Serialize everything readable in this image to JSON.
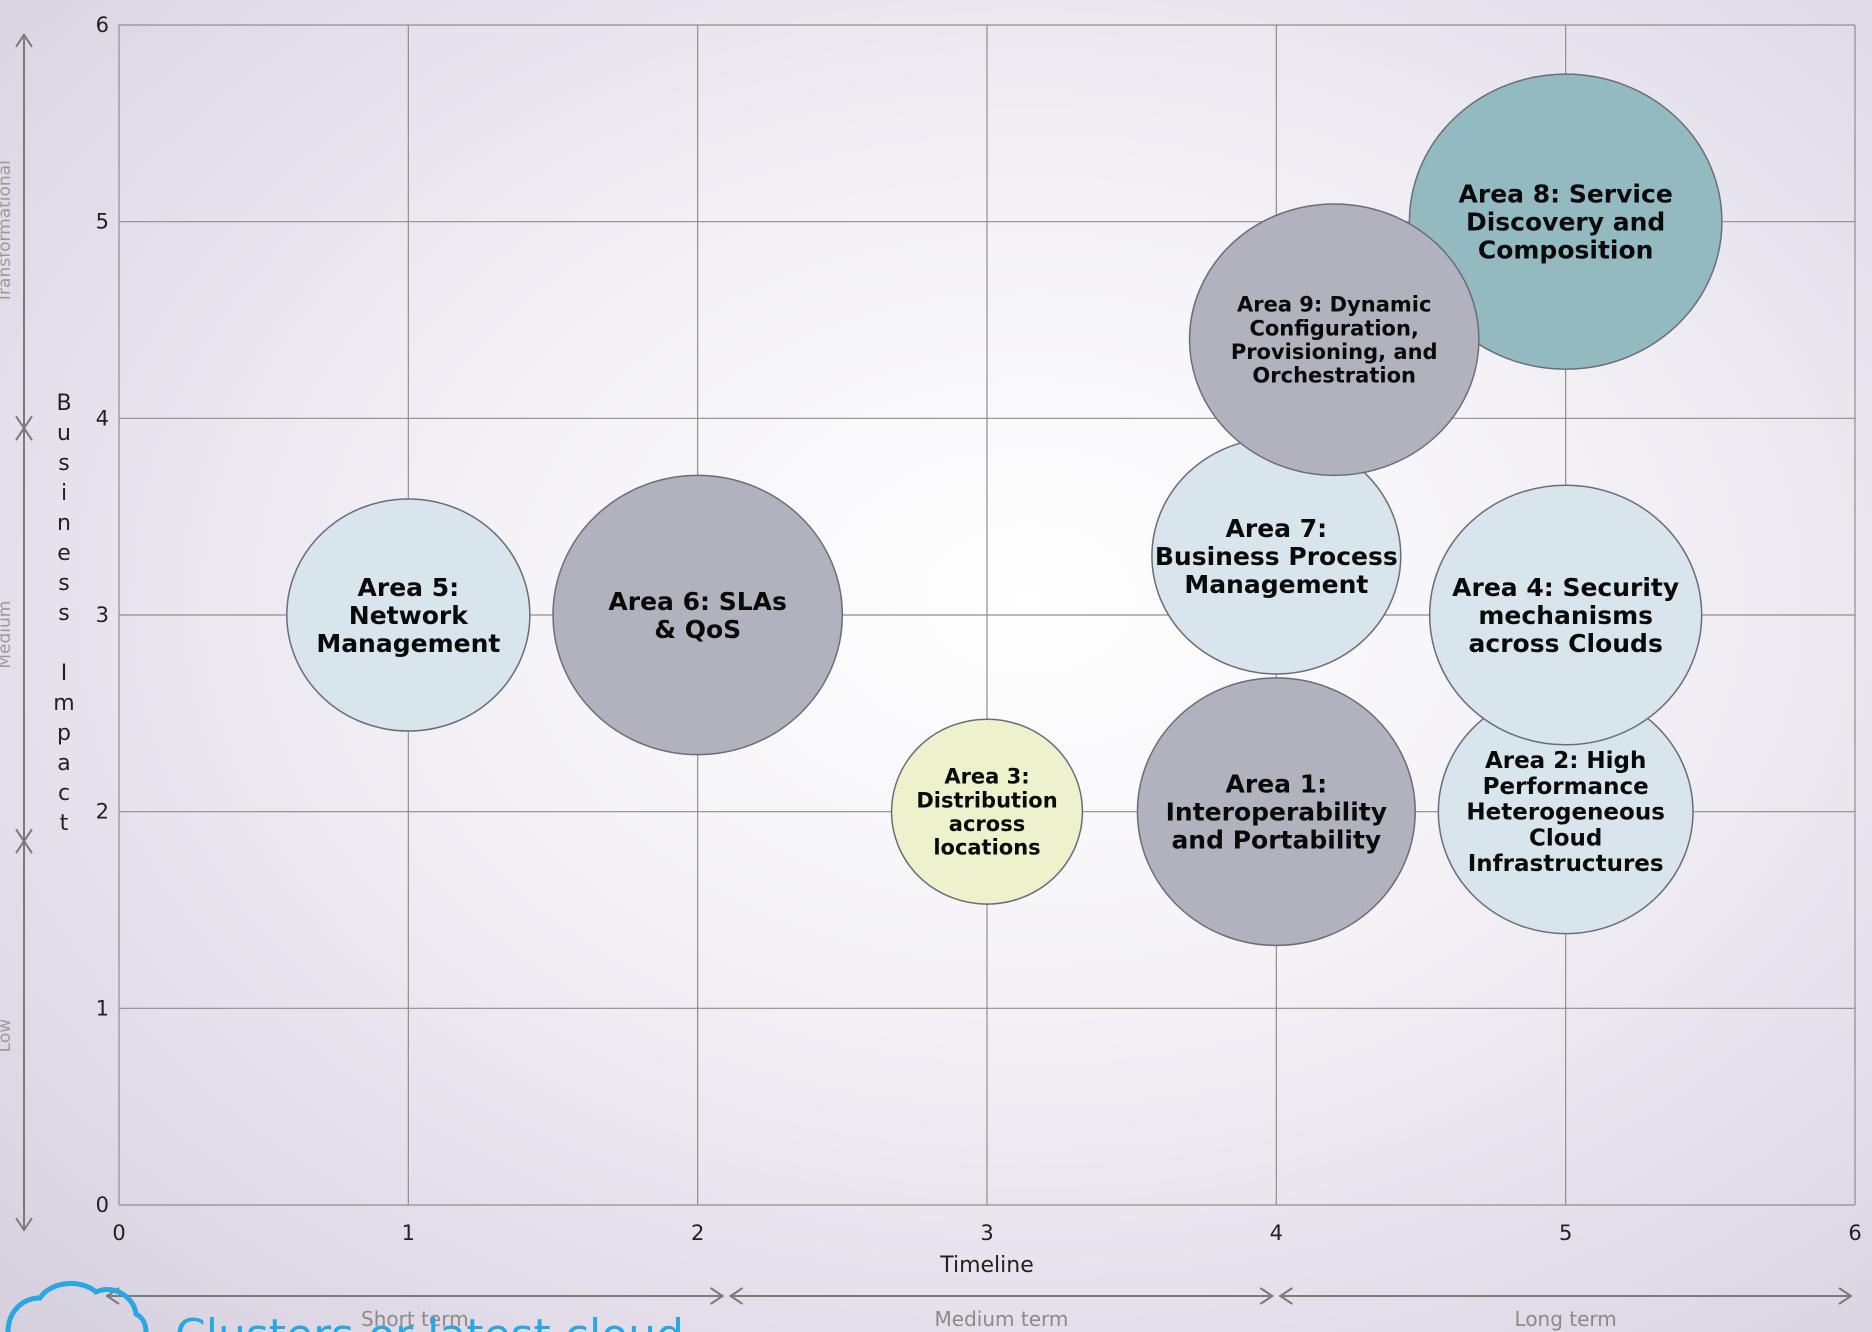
{
  "chart_data": {
    "type": "bubble",
    "xlabel": "Timeline",
    "ylabel": "Business Impact",
    "xlim": [
      0,
      6
    ],
    "ylim": [
      0,
      6
    ],
    "x_ticks": [
      "0",
      "1",
      "2",
      "3",
      "4",
      "5",
      "6"
    ],
    "y_ticks": [
      "0",
      "1",
      "2",
      "3",
      "4",
      "5",
      "6"
    ],
    "grid": true,
    "x_bands": [
      {
        "label": "Short term",
        "from": 0,
        "to": 2.1
      },
      {
        "label": "Medium term",
        "from": 2.1,
        "to": 4
      },
      {
        "label": "Long term",
        "from": 4,
        "to": 6
      }
    ],
    "y_bands": [
      {
        "label": "Low",
        "from": 0,
        "to": 1.85
      },
      {
        "label": "Medium",
        "from": 1.85,
        "to": 3.95
      },
      {
        "label": "Transformational",
        "from": 3.95,
        "to": 5.95
      }
    ],
    "bubbles": [
      {
        "label": "Area 5: Network Management",
        "lines": [
          "Area 5:",
          "Network",
          "Management"
        ],
        "x": 1.0,
        "y": 3.0,
        "rx": 0.42,
        "ry": 0.59,
        "color": "#d9e5ed"
      },
      {
        "label": "Area 6: SLAs & QoS",
        "lines": [
          "Area  6:  SLAs",
          "& QoS"
        ],
        "x": 2.0,
        "y": 3.0,
        "rx": 0.5,
        "ry": 0.71,
        "color": "#b2b2be"
      },
      {
        "label": "Area 3: Distribution across locations",
        "lines": [
          "Area 3:",
          "Distribution",
          "across",
          "locations"
        ],
        "x": 3.0,
        "y": 2.0,
        "rx": 0.33,
        "ry": 0.47,
        "color": "#eef2cc"
      },
      {
        "label": "Area 1: Interoperability and Portability",
        "lines": [
          "Area 1:",
          "Interoperability",
          "and Portability"
        ],
        "x": 4.0,
        "y": 2.0,
        "rx": 0.48,
        "ry": 0.68,
        "color": "#b2b2be"
      },
      {
        "label": "Area 7: Business Process Management",
        "lines": [
          "Area 7:",
          "Business Process",
          "Management"
        ],
        "x": 4.0,
        "y": 3.3,
        "rx": 0.43,
        "ry": 0.6,
        "color": "#d9e5ed"
      },
      {
        "label": "Area 2: High Performance Heterogeneous Cloud Infrastructures",
        "lines": [
          "Area 2: High",
          "Performance",
          "Heterogeneous",
          "Cloud",
          "Infrastructures"
        ],
        "x": 5.0,
        "y": 2.0,
        "rx": 0.44,
        "ry": 0.62,
        "color": "#d9e5ed"
      },
      {
        "label": "Area 4: Security mechanisms across Clouds",
        "lines": [
          "Area 4:  Security",
          "mechanisms",
          "across Clouds"
        ],
        "x": 5.0,
        "y": 3.0,
        "rx": 0.47,
        "ry": 0.66,
        "color": "#d9e5ed"
      },
      {
        "label": "Area 8: Service Discovery and Composition",
        "lines": [
          "Area 8: Service",
          "Discovery and",
          "Composition"
        ],
        "x": 5.0,
        "y": 5.0,
        "rx": 0.54,
        "ry": 0.75,
        "color": "#93bac1"
      },
      {
        "label": "Area 9: Dynamic Configuration, Provisioning, and Orchestration",
        "lines": [
          "Area 9: Dynamic",
          "Configuration,",
          "Provisioning, and",
          "Orchestration"
        ],
        "x": 4.2,
        "y": 4.4,
        "rx": 0.5,
        "ry": 0.69,
        "color": "#b2b2be"
      }
    ]
  },
  "branding": {
    "logo_icon": "cloud-icon",
    "logo_text": "Clusters or latest cloud",
    "accent_color": "#2aa7e0"
  }
}
